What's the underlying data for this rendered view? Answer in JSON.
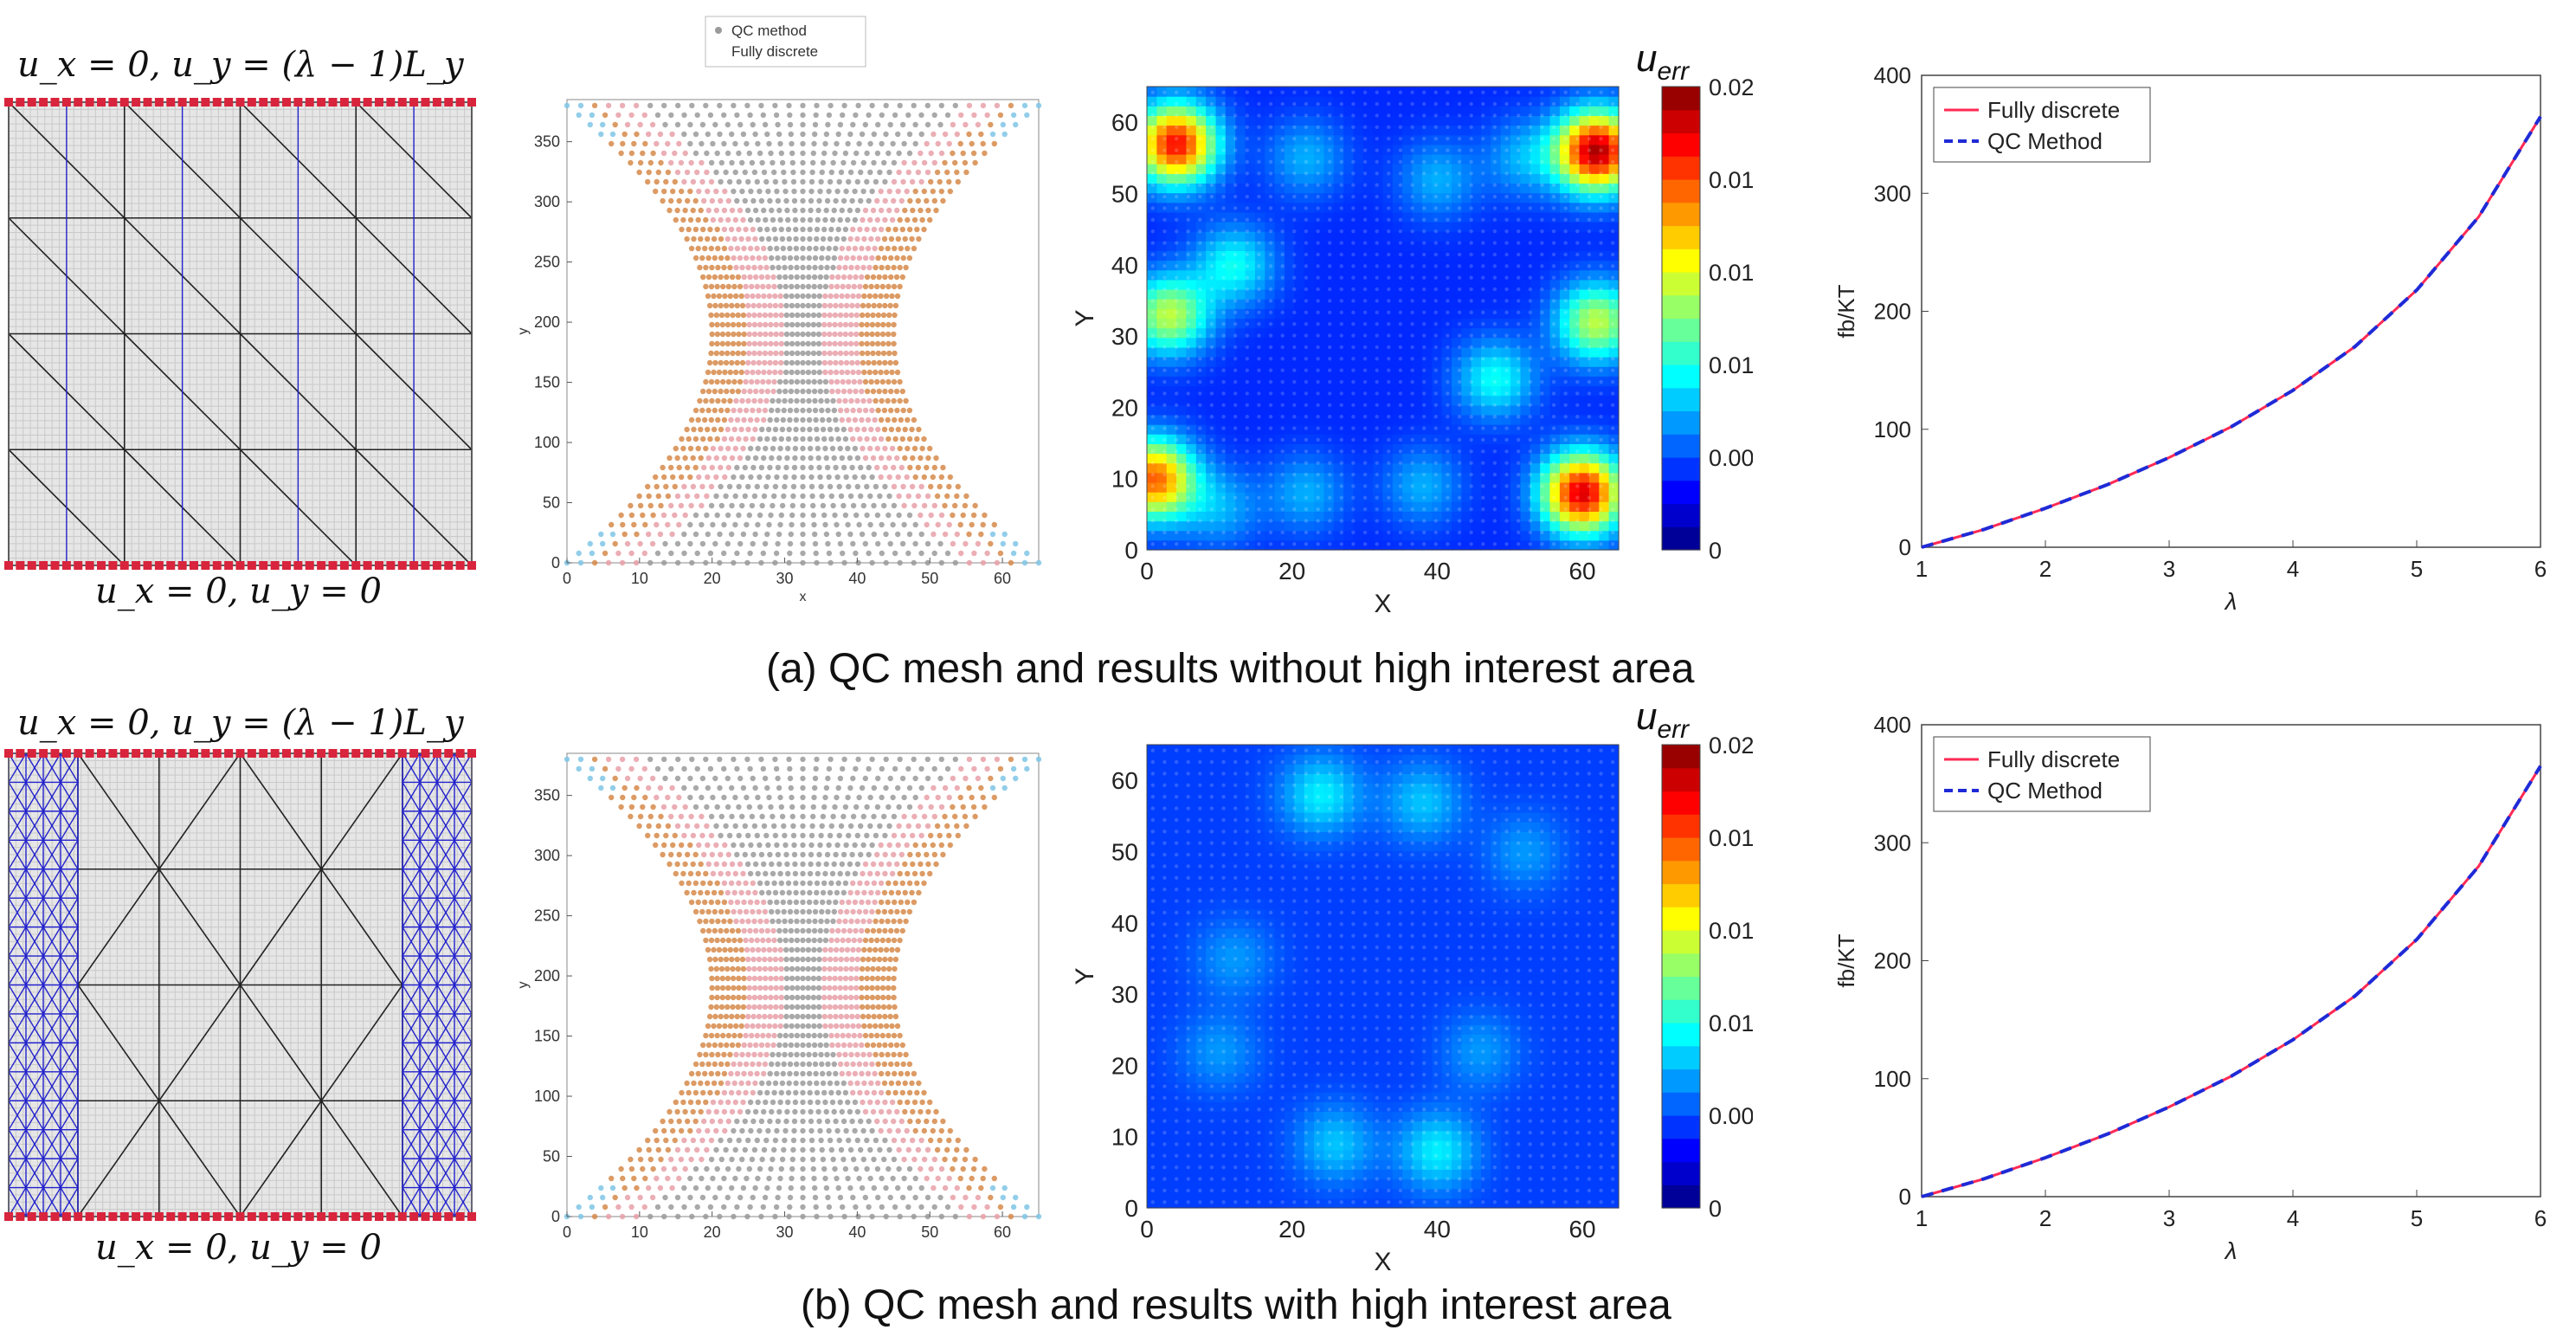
{
  "row_a": {
    "bc_top": "u_x = 0, u_y = (λ − 1)L_y",
    "bc_bottom": "u_x = 0, u_y = 0",
    "caption": "(a) QC mesh and results without high interest area",
    "mesh_high_interest": false
  },
  "row_b": {
    "bc_top": "u_x = 0, u_y = (λ − 1)L_y",
    "bc_bottom": "u_x = 0, u_y = 0",
    "caption": "(b) QC mesh and results with high interest area",
    "mesh_high_interest": true
  },
  "colors": {
    "mesh_black": "#222222",
    "mesh_blue": "#2222cc",
    "boundary_red": "#d8243c",
    "atoms_grey": "#9a9a9a",
    "atoms_pink": "#e7a0a8",
    "atoms_orange": "#d68a4a",
    "fully_discrete": "#ff2a55",
    "qc_method": "#1f2ad6"
  },
  "chart_data": [
    {
      "id": "deformed-a",
      "type": "scatter",
      "title": "",
      "xlabel": "x",
      "ylabel": "y",
      "xlim": [
        0,
        65
      ],
      "ylim": [
        0,
        385
      ],
      "xticks": [
        0,
        10,
        20,
        30,
        40,
        50,
        60
      ],
      "yticks": [
        0,
        50,
        100,
        150,
        200,
        250,
        300,
        350
      ],
      "legend": [
        "QC method",
        "Fully discrete"
      ],
      "legend_position": "top-outside",
      "series": [
        {
          "name": "QC method",
          "shape": "hourglass",
          "x_min": 0,
          "x_max": 65,
          "y_min": 0,
          "y_max": 380,
          "waist_x": [
            20,
            45
          ]
        },
        {
          "name": "Fully discrete",
          "shape": "hourglass",
          "x_min": 0,
          "x_max": 65,
          "y_min": 0,
          "y_max": 380,
          "waist_x": [
            20,
            45
          ]
        }
      ]
    },
    {
      "id": "error-a",
      "type": "heatmap",
      "title": "u_err",
      "xlabel": "X",
      "ylabel": "Y",
      "xlim": [
        0,
        65
      ],
      "ylim": [
        0,
        65
      ],
      "xticks": [
        0,
        20,
        40,
        60
      ],
      "yticks": [
        0,
        10,
        20,
        30,
        40,
        50,
        60
      ],
      "colorbar_ticks": [
        "0",
        "0.00",
        "0.01",
        "0.01",
        "0.01",
        "0.02"
      ],
      "color_range": [
        0,
        0.02
      ],
      "hotspots": [
        {
          "x": 4,
          "y": 57,
          "value": 0.016
        },
        {
          "x": 62,
          "y": 56,
          "value": 0.018
        },
        {
          "x": 1,
          "y": 10,
          "value": 0.014
        },
        {
          "x": 60,
          "y": 8,
          "value": 0.017
        },
        {
          "x": 3,
          "y": 33,
          "value": 0.009
        },
        {
          "x": 62,
          "y": 32,
          "value": 0.009
        },
        {
          "x": 12,
          "y": 40,
          "value": 0.005
        },
        {
          "x": 22,
          "y": 55,
          "value": 0.003
        },
        {
          "x": 40,
          "y": 52,
          "value": 0.003
        },
        {
          "x": 52,
          "y": 55,
          "value": 0.003
        },
        {
          "x": 10,
          "y": 6,
          "value": 0.003
        },
        {
          "x": 22,
          "y": 8,
          "value": 0.003
        },
        {
          "x": 38,
          "y": 9,
          "value": 0.003
        },
        {
          "x": 48,
          "y": 24,
          "value": 0.005
        }
      ],
      "background_value": 0.001
    },
    {
      "id": "force-a",
      "type": "line",
      "title": "",
      "xlabel": "λ",
      "ylabel": "fb/KT",
      "xlim": [
        1,
        6
      ],
      "ylim": [
        0,
        400
      ],
      "xticks": [
        1,
        2,
        3,
        4,
        5,
        6
      ],
      "yticks": [
        0,
        100,
        200,
        300,
        400
      ],
      "legend_position": "top-left",
      "x": [
        1,
        1.5,
        2,
        2.5,
        3,
        3.5,
        4,
        4.5,
        5,
        5.5,
        6
      ],
      "series": [
        {
          "name": "Fully discrete",
          "style": "solid",
          "values": [
            0,
            15,
            33,
            53,
            76,
            102,
            133,
            170,
            218,
            280,
            365
          ]
        },
        {
          "name": "QC Method",
          "style": "dashed",
          "values": [
            0,
            15,
            33,
            53,
            76,
            102,
            133,
            170,
            218,
            280,
            365
          ]
        }
      ]
    },
    {
      "id": "deformed-b",
      "type": "scatter",
      "title": "",
      "xlabel": "x",
      "ylabel": "y",
      "xlim": [
        0,
        65
      ],
      "ylim": [
        0,
        385
      ],
      "xticks": [
        0,
        10,
        20,
        30,
        40,
        50,
        60
      ],
      "yticks": [
        0,
        50,
        100,
        150,
        200,
        250,
        300,
        350
      ],
      "series": [
        {
          "name": "QC method",
          "shape": "hourglass",
          "x_min": 0,
          "x_max": 65,
          "y_min": 0,
          "y_max": 380,
          "waist_x": [
            20,
            45
          ]
        },
        {
          "name": "Fully discrete",
          "shape": "hourglass",
          "x_min": 0,
          "x_max": 65,
          "y_min": 0,
          "y_max": 380,
          "waist_x": [
            20,
            45
          ]
        }
      ]
    },
    {
      "id": "error-b",
      "type": "heatmap",
      "title": "u_err",
      "xlabel": "X",
      "ylabel": "Y",
      "xlim": [
        0,
        65
      ],
      "ylim": [
        0,
        65
      ],
      "xticks": [
        0,
        20,
        40,
        60
      ],
      "yticks": [
        0,
        10,
        20,
        30,
        40,
        50,
        60
      ],
      "colorbar_ticks": [
        "0",
        "0.00",
        "0.01",
        "0.01",
        "0.01",
        "0.02"
      ],
      "color_range": [
        0,
        0.02
      ],
      "hotspots": [
        {
          "x": 24,
          "y": 58,
          "value": 0.004
        },
        {
          "x": 38,
          "y": 57,
          "value": 0.003
        },
        {
          "x": 52,
          "y": 50,
          "value": 0.002
        },
        {
          "x": 12,
          "y": 35,
          "value": 0.002
        },
        {
          "x": 26,
          "y": 9,
          "value": 0.003
        },
        {
          "x": 40,
          "y": 8,
          "value": 0.004
        },
        {
          "x": 46,
          "y": 22,
          "value": 0.002
        },
        {
          "x": 10,
          "y": 22,
          "value": 0.002
        }
      ],
      "background_value": 0.0015
    },
    {
      "id": "force-b",
      "type": "line",
      "title": "",
      "xlabel": "λ",
      "ylabel": "fb/KT",
      "xlim": [
        1,
        6
      ],
      "ylim": [
        0,
        400
      ],
      "xticks": [
        1,
        2,
        3,
        4,
        5,
        6
      ],
      "yticks": [
        0,
        100,
        200,
        300,
        400
      ],
      "legend_position": "top-left",
      "x": [
        1,
        1.5,
        2,
        2.5,
        3,
        3.5,
        4,
        4.5,
        5,
        5.5,
        6
      ],
      "series": [
        {
          "name": "Fully discrete",
          "style": "solid",
          "values": [
            0,
            15,
            33,
            53,
            76,
            102,
            133,
            170,
            218,
            280,
            365
          ]
        },
        {
          "name": "QC Method",
          "style": "dashed",
          "values": [
            0,
            15,
            33,
            53,
            76,
            102,
            133,
            170,
            218,
            280,
            365
          ]
        }
      ]
    }
  ]
}
